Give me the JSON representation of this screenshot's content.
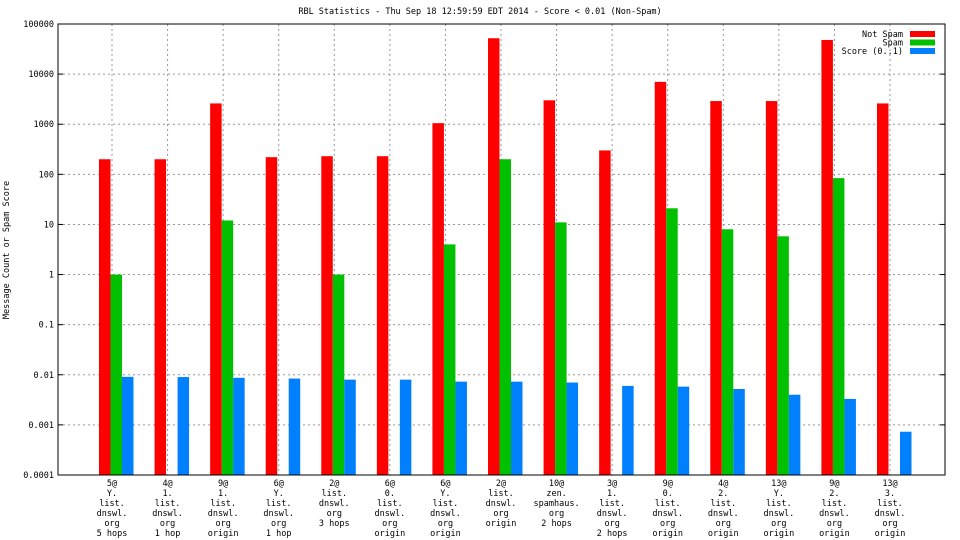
{
  "chart_data": {
    "type": "bar",
    "title": "RBL Statistics - Thu Sep 18 12:59:59 EDT 2014 - Score < 0.01 (Non-Spam)",
    "xlabel": "",
    "ylabel": "Message Count or Spam Score",
    "yscale": "log",
    "ylim": [
      0.0001,
      100000
    ],
    "yticks": [
      "100000",
      "10000",
      "1000",
      "100",
      "10",
      "1",
      "0.1",
      "0.01",
      "0.001",
      "0.0001"
    ],
    "grid": true,
    "legend_position": "top-right",
    "categories": [
      [
        "5@",
        "Y.",
        "list.",
        "dnswl.",
        "org",
        "5 hops"
      ],
      [
        "4@",
        "1.",
        "list.",
        "dnswl.",
        "org",
        "1 hop"
      ],
      [
        "9@",
        "1.",
        "list.",
        "dnswl.",
        "org",
        "origin"
      ],
      [
        "6@",
        "Y.",
        "list.",
        "dnswl.",
        "org",
        "1 hop"
      ],
      [
        "2@",
        "list.",
        "dnswl.",
        "org",
        "3 hops"
      ],
      [
        "6@",
        "0.",
        "list.",
        "dnswl.",
        "org",
        "origin"
      ],
      [
        "6@",
        "Y.",
        "list.",
        "dnswl.",
        "org",
        "origin"
      ],
      [
        "2@",
        "list.",
        "dnswl.",
        "org",
        "origin"
      ],
      [
        "10@",
        "zen.",
        "spamhaus.",
        "org",
        "2 hops"
      ],
      [
        "3@",
        "1.",
        "list.",
        "dnswl.",
        "org",
        "2 hops"
      ],
      [
        "9@",
        "0.",
        "list.",
        "dnswl.",
        "org",
        "origin"
      ],
      [
        "4@",
        "2.",
        "list.",
        "dnswl.",
        "org",
        "origin"
      ],
      [
        "13@",
        "Y.",
        "list.",
        "dnswl.",
        "org",
        "origin"
      ],
      [
        "9@",
        "2.",
        "list.",
        "dnswl.",
        "org",
        "origin"
      ],
      [
        "13@",
        "3.",
        "list.",
        "dnswl.",
        "org",
        "origin"
      ]
    ],
    "series": [
      {
        "name": "Not Spam",
        "color": "#ff0000",
        "values": [
          200,
          200,
          2600,
          220,
          230,
          230,
          1050,
          52000,
          3000,
          300,
          7000,
          2900,
          2900,
          48000,
          2600
        ]
      },
      {
        "name": "Spam",
        "color": "#00c000",
        "values": [
          1,
          0,
          12,
          0,
          1,
          0,
          4,
          200,
          11,
          0,
          21,
          8,
          5.8,
          84,
          0
        ]
      },
      {
        "name": "Score (0..1)",
        "color": "#0080ff",
        "values": [
          0.0091,
          0.009,
          0.0087,
          0.0084,
          0.008,
          0.008,
          0.0073,
          0.0073,
          0.007,
          0.006,
          0.0058,
          0.0052,
          0.004,
          0.0033,
          0.00073
        ]
      }
    ]
  }
}
